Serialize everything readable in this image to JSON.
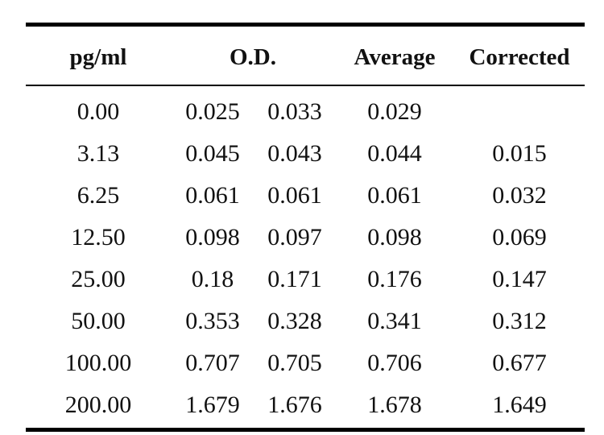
{
  "table": {
    "headers": {
      "pg_ml": "pg/ml",
      "od": "O.D.",
      "average": "Average",
      "corrected": "Corrected"
    },
    "rows": [
      {
        "pg": "0.00",
        "od1": "0.025",
        "od2": "0.033",
        "avg": "0.029",
        "corrected": ""
      },
      {
        "pg": "3.13",
        "od1": "0.045",
        "od2": "0.043",
        "avg": "0.044",
        "corrected": "0.015"
      },
      {
        "pg": "6.25",
        "od1": "0.061",
        "od2": "0.061",
        "avg": "0.061",
        "corrected": "0.032"
      },
      {
        "pg": "12.50",
        "od1": "0.098",
        "od2": "0.097",
        "avg": "0.098",
        "corrected": "0.069"
      },
      {
        "pg": "25.00",
        "od1": "0.18",
        "od2": "0.171",
        "avg": "0.176",
        "corrected": "0.147"
      },
      {
        "pg": "50.00",
        "od1": "0.353",
        "od2": "0.328",
        "avg": "0.341",
        "corrected": "0.312"
      },
      {
        "pg": "100.00",
        "od1": "0.707",
        "od2": "0.705",
        "avg": "0.706",
        "corrected": "0.677"
      },
      {
        "pg": "200.00",
        "od1": "1.679",
        "od2": "1.676",
        "avg": "1.678",
        "corrected": "1.649"
      }
    ]
  }
}
